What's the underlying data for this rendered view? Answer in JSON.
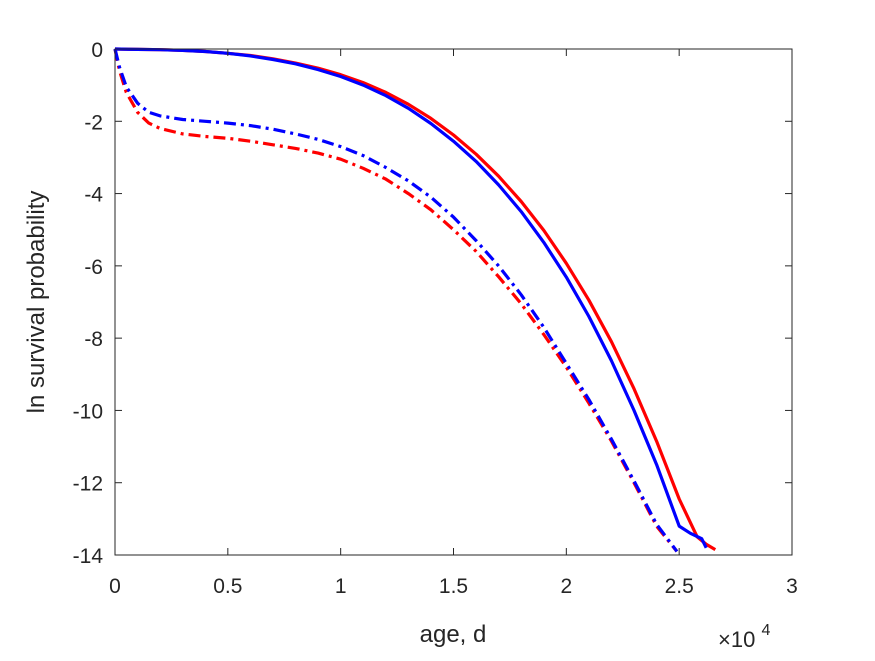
{
  "chart_data": {
    "type": "line",
    "xlabel": "age, d",
    "ylabel": "ln survival probability",
    "x_multiplier_label": "×10",
    "x_multiplier_exponent": "4",
    "xlim": [
      0,
      30000
    ],
    "ylim": [
      -14,
      0
    ],
    "x_ticks": [
      0,
      5000,
      10000,
      15000,
      20000,
      25000,
      30000
    ],
    "x_tick_labels": [
      "0",
      "0.5",
      "1",
      "1.5",
      "2",
      "2.5",
      "3"
    ],
    "y_ticks": [
      0,
      -2,
      -4,
      -6,
      -8,
      -10,
      -12,
      -14
    ],
    "y_tick_labels": [
      "0",
      "-2",
      "-4",
      "-6",
      "-8",
      "-10",
      "-12",
      "-14"
    ],
    "grid": false,
    "series": [
      {
        "color": "#ff0000",
        "line_style": "solid",
        "x": [
          0,
          1000,
          2000,
          3000,
          4000,
          5000,
          6000,
          7000,
          8000,
          9000,
          10000,
          11000,
          12000,
          13000,
          14000,
          15000,
          16000,
          17000,
          18000,
          19000,
          20000,
          21000,
          22000,
          23000,
          24000,
          25000,
          25800,
          26200,
          26600
        ],
        "y": [
          0,
          -0.01,
          -0.02,
          -0.04,
          -0.07,
          -0.12,
          -0.18,
          -0.27,
          -0.39,
          -0.53,
          -0.71,
          -0.93,
          -1.2,
          -1.53,
          -1.92,
          -2.38,
          -2.91,
          -3.52,
          -4.22,
          -5.02,
          -5.93,
          -6.95,
          -8.1,
          -9.4,
          -10.85,
          -12.45,
          -13.5,
          -13.7,
          -13.85
        ]
      },
      {
        "color": "#0000ff",
        "line_style": "solid",
        "x": [
          0,
          1000,
          2000,
          3000,
          4000,
          5000,
          6000,
          7000,
          8000,
          9000,
          10000,
          11000,
          12000,
          13000,
          14000,
          15000,
          16000,
          17000,
          18000,
          19000,
          20000,
          21000,
          22000,
          23000,
          24000,
          25000,
          25500,
          26000,
          26200
        ],
        "y": [
          0,
          -0.01,
          -0.02,
          -0.04,
          -0.07,
          -0.12,
          -0.19,
          -0.29,
          -0.41,
          -0.57,
          -0.76,
          -1.0,
          -1.29,
          -1.64,
          -2.06,
          -2.55,
          -3.11,
          -3.76,
          -4.5,
          -5.35,
          -6.31,
          -7.4,
          -8.63,
          -10.0,
          -11.5,
          -13.2,
          -13.4,
          -13.55,
          -13.8
        ]
      },
      {
        "color": "#ff0000",
        "line_style": "dash-dot",
        "x": [
          0,
          200,
          500,
          1000,
          1500,
          2000,
          3000,
          4000,
          5000,
          6000,
          7000,
          8000,
          9000,
          10000,
          11000,
          12000,
          13000,
          14000,
          15000,
          16000,
          17000,
          18000,
          19000,
          20000,
          21000,
          22000,
          23000,
          24000,
          24900
        ],
        "y": [
          0,
          -0.6,
          -1.2,
          -1.75,
          -2.05,
          -2.2,
          -2.35,
          -2.42,
          -2.47,
          -2.55,
          -2.65,
          -2.75,
          -2.88,
          -3.05,
          -3.3,
          -3.6,
          -4.0,
          -4.45,
          -5.0,
          -5.6,
          -6.3,
          -7.05,
          -7.9,
          -8.8,
          -9.8,
          -10.85,
          -12.0,
          -13.2,
          -13.9
        ]
      },
      {
        "color": "#0000ff",
        "line_style": "dash-dot",
        "x": [
          0,
          200,
          500,
          1000,
          1500,
          2000,
          3000,
          4000,
          5000,
          6000,
          7000,
          8000,
          9000,
          10000,
          11000,
          12000,
          13000,
          14000,
          15000,
          16000,
          17000,
          18000,
          19000,
          20000,
          21000,
          22000,
          23000,
          24000,
          24900
        ],
        "y": [
          0,
          -0.5,
          -1.05,
          -1.5,
          -1.75,
          -1.85,
          -1.95,
          -2.0,
          -2.05,
          -2.12,
          -2.22,
          -2.35,
          -2.5,
          -2.7,
          -2.95,
          -3.28,
          -3.65,
          -4.1,
          -4.65,
          -5.3,
          -6.0,
          -6.8,
          -7.7,
          -8.7,
          -9.7,
          -10.8,
          -11.95,
          -13.15,
          -13.9
        ]
      }
    ]
  }
}
